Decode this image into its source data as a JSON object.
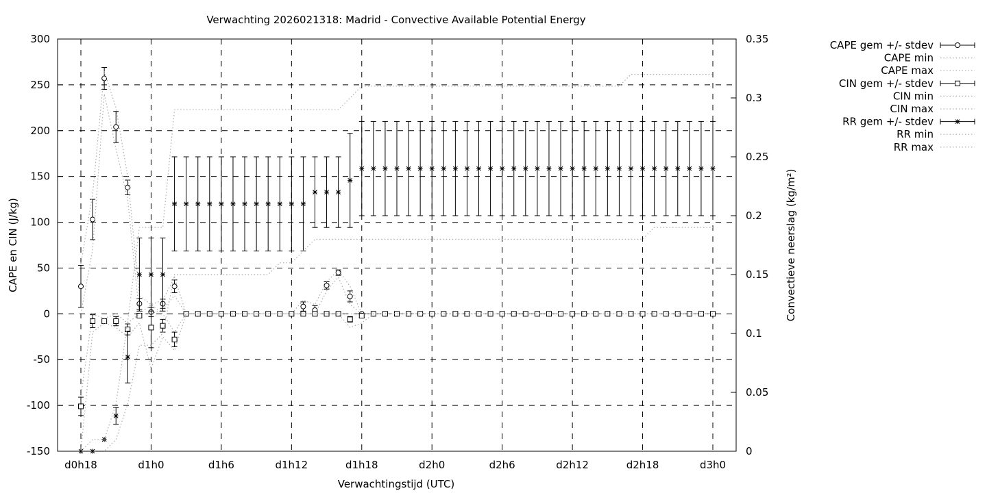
{
  "chart_data": {
    "type": "line",
    "title": "Verwachting 2026021318: Madrid - Convective Available Potential Energy",
    "xlabel": "Verwachtingstijd (UTC)",
    "ylabel": "CAPE en CIN (J/kg)",
    "y2label": "Convectieve neerslag (kg/m²)",
    "xlim_hours": [
      16,
      74
    ],
    "ylim": [
      -150,
      300
    ],
    "y2lim": [
      0,
      0.35
    ],
    "grid": true,
    "legend_position": "outside-top-right",
    "x_ticks": [
      {
        "hour": 18,
        "label": "d0h18"
      },
      {
        "hour": 24,
        "label": "d1h0"
      },
      {
        "hour": 30,
        "label": "d1h6"
      },
      {
        "hour": 36,
        "label": "d1h12"
      },
      {
        "hour": 42,
        "label": "d1h18"
      },
      {
        "hour": 48,
        "label": "d2h0"
      },
      {
        "hour": 54,
        "label": "d2h6"
      },
      {
        "hour": 60,
        "label": "d2h12"
      },
      {
        "hour": 66,
        "label": "d2h18"
      },
      {
        "hour": 72,
        "label": "d3h0"
      }
    ],
    "y_ticks": [
      "300",
      "250",
      "200",
      "150",
      "100",
      "50",
      "0",
      "-50",
      "-100",
      "-150"
    ],
    "y2_ticks": [
      "0.35",
      "0.3",
      "0.25",
      "0.2",
      "0.15",
      "0.1",
      "0.05",
      "0"
    ],
    "x_start_hour": 18,
    "x_step_hours": 1,
    "series": [
      {
        "name": "CAPE gem +/- stdev",
        "axis": "y",
        "style": "errorbar-circle",
        "values": [
          30,
          103,
          257,
          204,
          138,
          11,
          2,
          11,
          30,
          0,
          0,
          0,
          0,
          0,
          0,
          0,
          0,
          0,
          0,
          8,
          4,
          31,
          45,
          19,
          0,
          0,
          0,
          0,
          0,
          0,
          0,
          0,
          0,
          0,
          0,
          0,
          0,
          0,
          0,
          0,
          0,
          0,
          0,
          0,
          0,
          0,
          0,
          0,
          0,
          0,
          0,
          0,
          0,
          0,
          0
        ],
        "stdev": [
          23,
          22,
          12,
          17,
          8,
          6,
          5,
          5,
          7,
          0,
          0,
          0,
          0,
          0,
          0,
          0,
          0,
          0,
          0,
          5,
          5,
          4,
          3,
          6,
          0,
          0,
          0,
          0,
          0,
          0,
          0,
          0,
          0,
          0,
          0,
          0,
          0,
          0,
          0,
          0,
          0,
          0,
          0,
          0,
          0,
          0,
          0,
          0,
          0,
          0,
          0,
          0,
          0,
          0,
          0
        ]
      },
      {
        "name": "CAPE min",
        "axis": "y",
        "style": "dotted",
        "values": [
          0,
          70,
          240,
          180,
          125,
          0,
          0,
          5,
          20,
          0,
          0,
          0,
          0,
          0,
          0,
          0,
          0,
          0,
          0,
          0,
          0,
          25,
          40,
          10,
          0,
          0,
          0,
          0,
          0,
          0,
          0,
          0,
          0,
          0,
          0,
          0,
          0,
          0,
          0,
          0,
          0,
          0,
          0,
          0,
          0,
          0,
          0,
          0,
          0,
          0,
          0,
          0,
          0,
          0,
          0
        ]
      },
      {
        "name": "CAPE max",
        "axis": "y",
        "style": "dotted",
        "values": [
          55,
          130,
          265,
          225,
          150,
          20,
          10,
          15,
          40,
          0,
          0,
          0,
          0,
          0,
          0,
          0,
          0,
          0,
          0,
          15,
          10,
          35,
          48,
          30,
          0,
          0,
          0,
          0,
          0,
          0,
          0,
          0,
          0,
          0,
          0,
          0,
          0,
          0,
          0,
          0,
          0,
          0,
          0,
          0,
          0,
          0,
          0,
          0,
          0,
          0,
          0,
          0,
          0,
          0,
          0
        ]
      },
      {
        "name": "CIN gem +/- stdev",
        "axis": "y",
        "style": "errorbar-square",
        "values": [
          -101,
          -8,
          -8,
          -8,
          -17,
          -2,
          -15,
          -13,
          -28,
          0,
          0,
          0,
          0,
          0,
          0,
          0,
          0,
          0,
          0,
          0,
          0,
          0,
          0,
          -6,
          -2,
          0,
          0,
          0,
          0,
          0,
          0,
          0,
          0,
          0,
          0,
          0,
          0,
          0,
          0,
          0,
          0,
          0,
          0,
          0,
          0,
          0,
          0,
          0,
          0,
          0,
          0,
          0,
          0,
          0,
          0
        ],
        "stdev": [
          10,
          7,
          0,
          5,
          6,
          2,
          22,
          7,
          8,
          0,
          0,
          0,
          0,
          0,
          0,
          0,
          0,
          0,
          0,
          0,
          0,
          0,
          0,
          3,
          2,
          0,
          0,
          0,
          0,
          0,
          0,
          0,
          0,
          0,
          0,
          0,
          0,
          0,
          0,
          0,
          0,
          0,
          0,
          0,
          0,
          0,
          0,
          0,
          0,
          0,
          0,
          0,
          0,
          0,
          0
        ]
      },
      {
        "name": "CIN min",
        "axis": "y",
        "style": "dotted",
        "values": [
          -150,
          -20,
          -10,
          -15,
          -25,
          -10,
          -60,
          -25,
          -40,
          0,
          0,
          0,
          0,
          0,
          0,
          0,
          0,
          0,
          0,
          0,
          0,
          0,
          0,
          -15,
          -10,
          0,
          0,
          0,
          0,
          0,
          0,
          0,
          0,
          0,
          0,
          0,
          0,
          0,
          0,
          0,
          0,
          0,
          0,
          0,
          0,
          0,
          0,
          0,
          0,
          0,
          0,
          0,
          0,
          0,
          0
        ]
      },
      {
        "name": "CIN max",
        "axis": "y",
        "style": "dotted",
        "values": [
          -90,
          0,
          -5,
          0,
          -10,
          0,
          10,
          0,
          -20,
          0,
          0,
          0,
          0,
          0,
          0,
          0,
          0,
          0,
          0,
          0,
          0,
          0,
          0,
          0,
          0,
          0,
          0,
          0,
          0,
          0,
          0,
          0,
          0,
          0,
          0,
          0,
          0,
          0,
          0,
          0,
          0,
          0,
          0,
          0,
          0,
          0,
          0,
          0,
          0,
          0,
          0,
          0,
          0,
          0,
          0
        ]
      },
      {
        "name": "RR gem +/- stdev",
        "axis": "y2",
        "style": "errorbar-star",
        "values": [
          0,
          0,
          0.01,
          0.03,
          0.08,
          0.15,
          0.15,
          0.15,
          0.21,
          0.21,
          0.21,
          0.21,
          0.21,
          0.21,
          0.21,
          0.21,
          0.21,
          0.21,
          0.21,
          0.21,
          0.22,
          0.22,
          0.22,
          0.23,
          0.24,
          0.24,
          0.24,
          0.24,
          0.24,
          0.24,
          0.24,
          0.24,
          0.24,
          0.24,
          0.24,
          0.24,
          0.24,
          0.24,
          0.24,
          0.24,
          0.24,
          0.24,
          0.24,
          0.24,
          0.24,
          0.24,
          0.24,
          0.24,
          0.24,
          0.24,
          0.24,
          0.24,
          0.24,
          0.24,
          0.24
        ],
        "stdev": [
          0,
          0,
          0,
          0.007,
          0.022,
          0.031,
          0.031,
          0.031,
          0.04,
          0.04,
          0.04,
          0.04,
          0.04,
          0.04,
          0.04,
          0.04,
          0.04,
          0.04,
          0.04,
          0.04,
          0.03,
          0.03,
          0.03,
          0.04,
          0.04,
          0.04,
          0.04,
          0.04,
          0.04,
          0.04,
          0.04,
          0.04,
          0.04,
          0.04,
          0.04,
          0.04,
          0.04,
          0.04,
          0.04,
          0.04,
          0.04,
          0.04,
          0.04,
          0.04,
          0.04,
          0.04,
          0.04,
          0.04,
          0.04,
          0.04,
          0.04,
          0.04,
          0.04,
          0.04,
          0.04
        ]
      },
      {
        "name": "RR min",
        "axis": "y2",
        "style": "dotted",
        "values": [
          0,
          0,
          0,
          0.01,
          0.04,
          0.09,
          0.09,
          0.1,
          0.15,
          0.15,
          0.15,
          0.15,
          0.15,
          0.15,
          0.15,
          0.15,
          0.15,
          0.16,
          0.16,
          0.17,
          0.18,
          0.18,
          0.18,
          0.18,
          0.18,
          0.18,
          0.18,
          0.18,
          0.18,
          0.18,
          0.18,
          0.18,
          0.18,
          0.18,
          0.18,
          0.18,
          0.18,
          0.18,
          0.18,
          0.18,
          0.18,
          0.18,
          0.18,
          0.18,
          0.18,
          0.18,
          0.18,
          0.18,
          0.18,
          0.19,
          0.19,
          0.19,
          0.19,
          0.19,
          0.19
        ]
      },
      {
        "name": "RR max",
        "axis": "y2",
        "style": "dotted",
        "values": [
          0,
          0.01,
          0.01,
          0.04,
          0.11,
          0.19,
          0.19,
          0.19,
          0.29,
          0.29,
          0.29,
          0.29,
          0.29,
          0.29,
          0.29,
          0.29,
          0.29,
          0.29,
          0.29,
          0.29,
          0.29,
          0.29,
          0.29,
          0.3,
          0.31,
          0.31,
          0.31,
          0.31,
          0.31,
          0.31,
          0.31,
          0.31,
          0.31,
          0.31,
          0.31,
          0.31,
          0.31,
          0.31,
          0.31,
          0.31,
          0.31,
          0.31,
          0.31,
          0.31,
          0.31,
          0.31,
          0.31,
          0.32,
          0.32,
          0.32,
          0.32,
          0.32,
          0.32,
          0.32,
          0.32
        ]
      }
    ]
  }
}
